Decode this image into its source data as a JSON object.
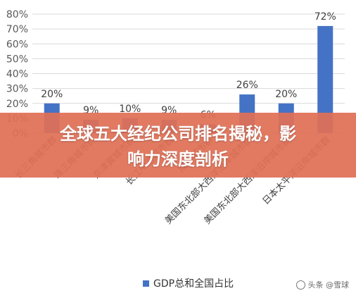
{
  "chart_data": {
    "type": "bar",
    "categories": [
      "长三角城市群",
      "珠三角城市群",
      "京津冀城市群",
      "长江中游城市群",
      "成渝城市群",
      "美国东北部大西洋沿岸城市群",
      "美国东北部大西洋沿岸城市群",
      "日本太平洋沿岸城市群"
    ],
    "series": [
      {
        "name": "GDP总和全国占比",
        "values": [
          20,
          9,
          10,
          9,
          6,
          26,
          20,
          72
        ],
        "color": "#4472c4"
      }
    ],
    "data_labels": [
      "20%",
      "9%",
      "10%",
      "9%",
      "6%",
      "26%",
      "20%",
      "72%"
    ],
    "y_ticks": [
      "0%",
      "10%",
      "20%",
      "30%",
      "40%",
      "50%",
      "60%",
      "70%",
      "80%"
    ],
    "ylim": [
      0,
      80
    ],
    "grid": true,
    "legend_position": "bottom"
  },
  "banner": {
    "line1": "全球五大经纪公司排名揭秘，影",
    "line2": "响力深度剖析"
  },
  "watermark": "头条 @雪球"
}
